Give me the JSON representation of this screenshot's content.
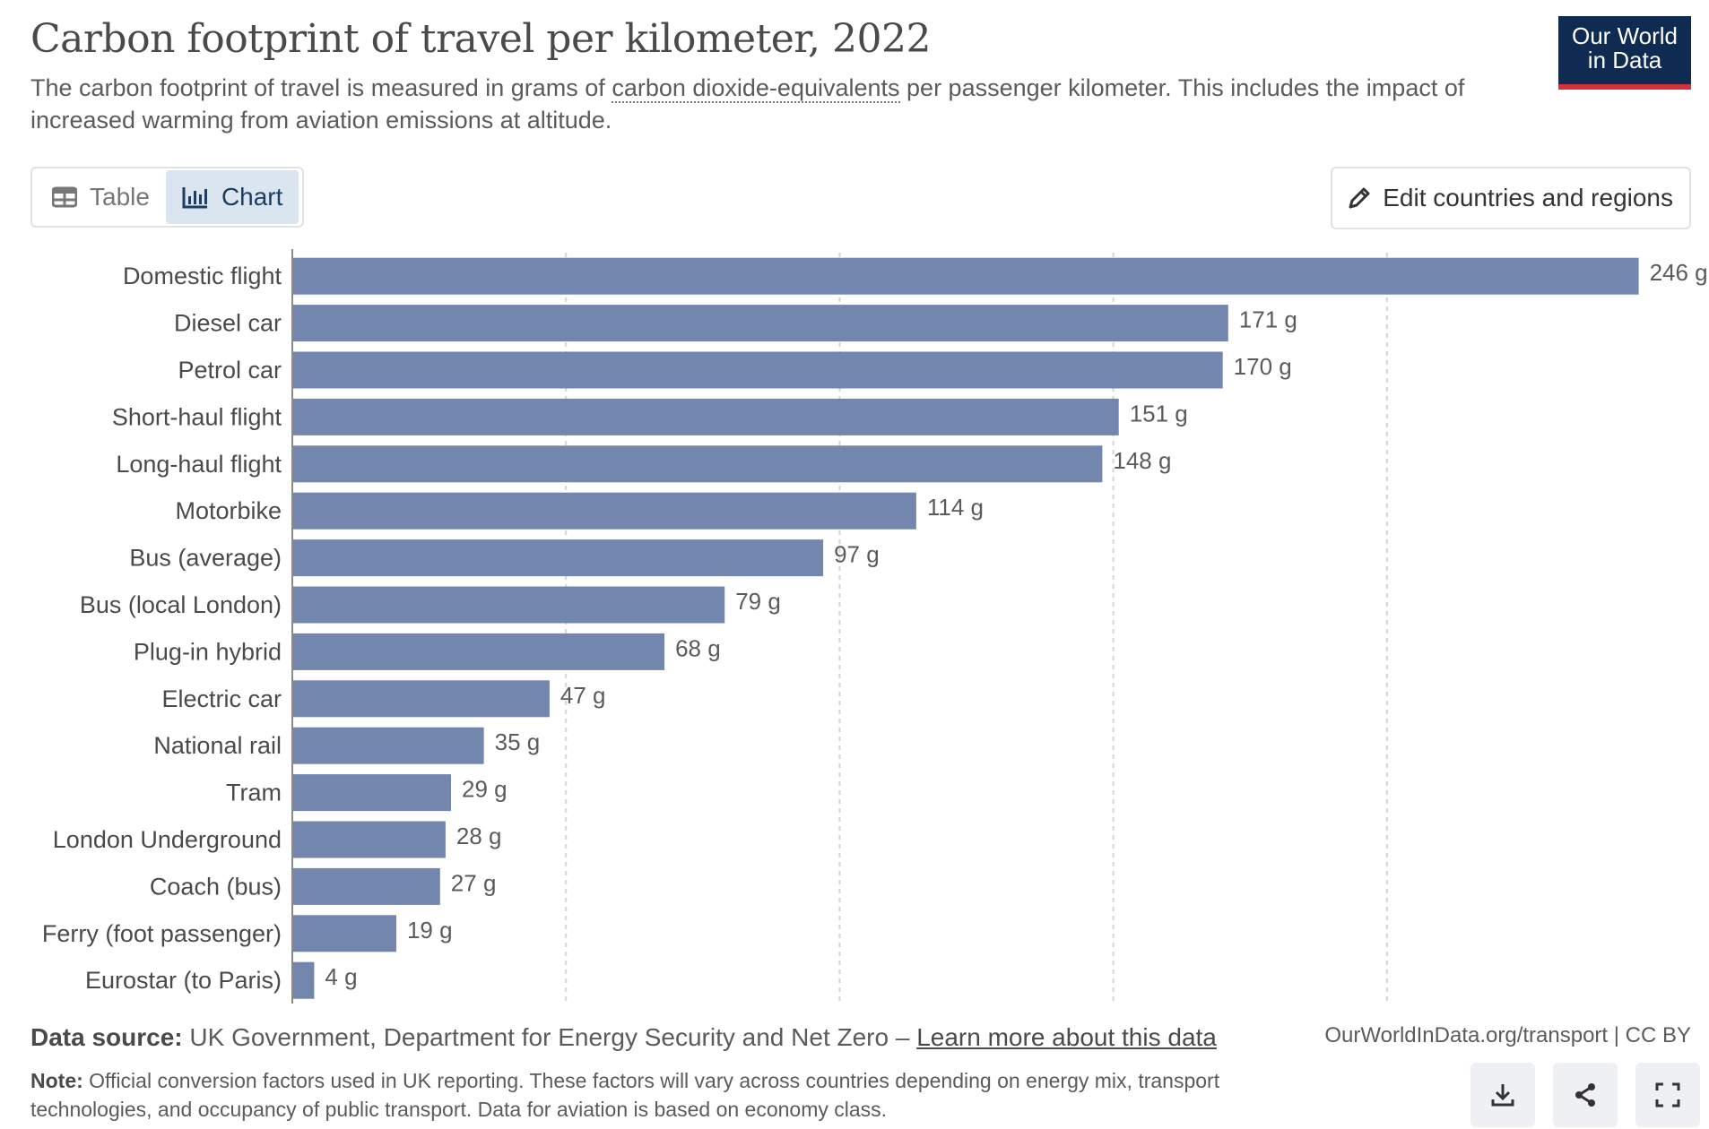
{
  "header": {
    "title": "Carbon footprint of travel per kilometer, 2022",
    "subtitle_before": "The carbon footprint of travel is measured in grams of ",
    "subtitle_link": "carbon dioxide-equivalents",
    "subtitle_after": " per passenger kilometer. This includes the impact of increased warming from aviation emissions at altitude."
  },
  "logo": {
    "line1": "Our World",
    "line2": "in Data",
    "bg_color": "#0f2b52",
    "accent_color": "#d0343a"
  },
  "tabs": [
    {
      "label": "Table",
      "icon": "table-icon",
      "active": false
    },
    {
      "label": "Chart",
      "icon": "chart-icon",
      "active": true
    }
  ],
  "edit_button": {
    "label": "Edit countries and regions",
    "icon": "pencil-icon"
  },
  "chart_data": {
    "type": "bar",
    "orientation": "horizontal",
    "categories": [
      "Domestic flight",
      "Diesel car",
      "Petrol car",
      "Short-haul flight",
      "Long-haul flight",
      "Motorbike",
      "Bus (average)",
      "Bus (local London)",
      "Plug-in hybrid",
      "Electric car",
      "National rail",
      "Tram",
      "London Underground",
      "Coach (bus)",
      "Ferry (foot passenger)",
      "Eurostar (to Paris)"
    ],
    "values": [
      246,
      171,
      170,
      151,
      148,
      114,
      97,
      79,
      68,
      47,
      35,
      29,
      28,
      27,
      19,
      4
    ],
    "value_labels": [
      "246 g",
      "171 g",
      "170 g",
      "151 g",
      "148 g",
      "114 g",
      "97 g",
      "79 g",
      "68 g",
      "47 g",
      "35 g",
      "29 g",
      "28 g",
      "27 g",
      "19 g",
      "4 g"
    ],
    "xlim": [
      0,
      250
    ],
    "gridlines": [
      50,
      100,
      150,
      200
    ],
    "grid": true,
    "bar_color": "#7386ae"
  },
  "footer": {
    "source_label": "Data source:",
    "source_text": " UK Government, Department for Energy Security and Net Zero – ",
    "source_link": "Learn more about this data",
    "url": "OurWorldInData.org/transport | CC BY",
    "note_label": "Note:",
    "note_text": " Official conversion factors used in UK reporting. These factors will vary across countries depending on energy mix, transport technologies, and occupancy of public transport. Data for aviation is based on economy class."
  },
  "actions": [
    {
      "name": "download-button",
      "icon": "download-icon"
    },
    {
      "name": "share-button",
      "icon": "share-icon"
    },
    {
      "name": "fullscreen-button",
      "icon": "fullscreen-icon"
    }
  ]
}
